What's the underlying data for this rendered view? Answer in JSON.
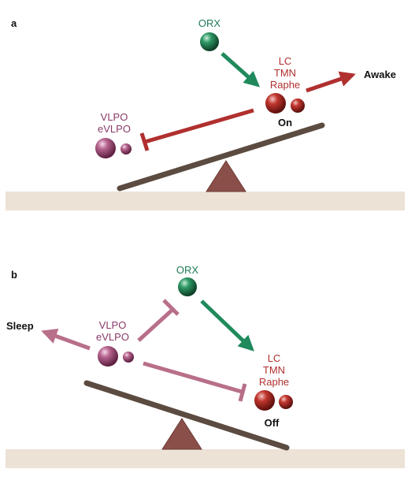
{
  "panel_a": {
    "letter": "a",
    "orx": "ORX",
    "wake_nuclei": [
      "LC",
      "TMN",
      "Raphe"
    ],
    "sleep_nuclei": [
      "VLPO",
      "eVLPO"
    ],
    "state": "On",
    "outcome": "Awake"
  },
  "panel_b": {
    "letter": "b",
    "orx": "ORX",
    "wake_nuclei": [
      "LC",
      "TMN",
      "Raphe"
    ],
    "sleep_nuclei": [
      "VLPO",
      "eVLPO"
    ],
    "state": "Off",
    "outcome": "Sleep"
  },
  "colors": {
    "green": "#1f7a55",
    "red": "#b0302f",
    "purple": "#8a3a68",
    "arrow_pink": "#b86f8a",
    "beam": "#5b4b40",
    "fulcrum": "#8a4f49",
    "ground": "#ece2d6"
  }
}
